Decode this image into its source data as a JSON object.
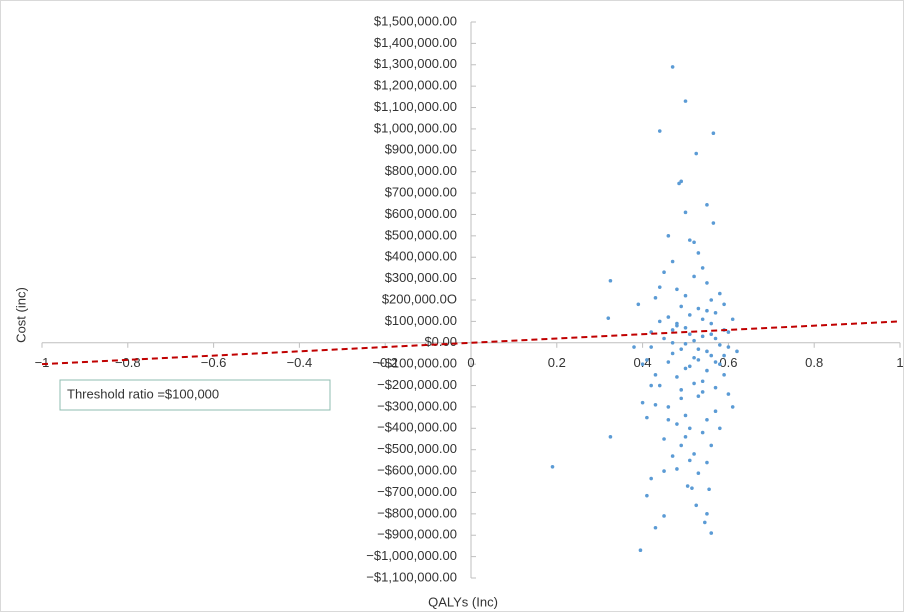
{
  "chart_data": {
    "type": "scatter",
    "x_label": "QALYs (Inc)",
    "y_label": "Cost (inc)",
    "annotation": "Threshold ratio =$100,000",
    "color": "#5b9bd5",
    "xlim": [
      -1,
      1
    ],
    "ylim": [
      -1100000,
      1500000
    ],
    "xticks": [
      {
        "value": -1,
        "label": "−1"
      },
      {
        "value": -0.8,
        "label": "−0.8"
      },
      {
        "value": -0.6,
        "label": "−0.6"
      },
      {
        "value": -0.4,
        "label": "−0.4"
      },
      {
        "value": -0.2,
        "label": "−0.2"
      },
      0,
      0.2,
      0.4,
      0.6,
      0.8,
      1
    ],
    "yticks": [
      {
        "value": 1500000,
        "label": "$1,500,000.00"
      },
      {
        "value": 1400000,
        "label": "$1,400,000.00"
      },
      {
        "value": 1300000,
        "label": "$1,300,000.00"
      },
      {
        "value": 1200000,
        "label": "$1,200,000.00"
      },
      {
        "value": 1100000,
        "label": "$1,100,000.00"
      },
      {
        "value": 1000000,
        "label": "$1,000,000.00"
      },
      {
        "value": 900000,
        "label": "$900,000.00"
      },
      {
        "value": 800000,
        "label": "$800,000.00"
      },
      {
        "value": 700000,
        "label": "$700,000.00"
      },
      {
        "value": 600000,
        "label": "$600,000.00"
      },
      {
        "value": 500000,
        "label": "$500,000.00"
      },
      {
        "value": 400000,
        "label": "$400,000.00"
      },
      {
        "value": 300000,
        "label": "$300,000.00"
      },
      {
        "value": 200000,
        "label": "$200,000.0O"
      },
      {
        "value": 100000,
        "label": "$100,000.00"
      },
      {
        "value": 0,
        "label": "$0.00"
      },
      {
        "value": -100000,
        "label": "−$100,000.00"
      },
      {
        "value": -200000,
        "label": "−$200,000.00"
      },
      {
        "value": -300000,
        "label": "−$300,000.00"
      },
      {
        "value": -400000,
        "label": "−$400,000.00"
      },
      {
        "value": -500000,
        "label": "−$500,000.00"
      },
      {
        "value": -600000,
        "label": "−$600,000.00"
      },
      {
        "value": -700000,
        "label": "−$700,000.00"
      },
      {
        "value": -800000,
        "label": "−$800,000.00"
      },
      {
        "value": -900000,
        "label": "−$900,000.00"
      },
      {
        "value": -1000000,
        "label": "−$1,000,000.00"
      },
      {
        "value": -1100000,
        "label": "−$1,100,000.00"
      }
    ],
    "threshold_line": {
      "color": "#c00000",
      "x": [
        -1,
        1
      ],
      "y": [
        -100000,
        100000
      ]
    },
    "x": [
      0.45,
      0.47,
      0.48,
      0.5,
      0.52,
      0.53,
      0.55,
      0.57,
      0.59,
      0.6,
      0.44,
      0.46,
      0.49,
      0.51,
      0.54,
      0.56,
      0.58,
      0.43,
      0.42,
      0.41,
      0.48,
      0.5,
      0.52,
      0.54,
      0.56,
      0.46,
      0.47,
      0.53,
      0.55,
      0.51,
      0.49,
      0.51,
      0.53,
      0.57,
      0.45,
      0.58,
      0.4,
      0.39,
      0.61,
      0.6,
      0.47,
      0.52,
      0.54,
      0.5,
      0.48,
      0.55,
      0.56,
      0.44,
      0.57,
      0.53,
      0.46,
      0.49,
      0.51,
      0.43,
      0.58,
      0.59,
      0.42,
      0.45,
      0.52,
      0.55,
      0.5,
      0.48,
      0.53,
      0.56,
      0.47,
      0.57,
      0.44,
      0.54,
      0.49,
      0.51,
      0.38,
      0.4,
      0.41,
      0.62,
      0.61,
      0.59,
      0.6,
      0.46,
      0.52,
      0.5,
      0.45,
      0.54,
      0.55,
      0.56,
      0.48,
      0.49,
      0.53,
      0.51,
      0.58,
      0.57,
      0.43,
      0.47,
      0.52,
      0.5,
      0.46,
      0.55,
      0.54,
      0.42,
      0.59,
      0.48,
      0.47,
      0.5,
      0.44,
      0.565,
      0.525,
      0.49,
      0.485,
      0.55,
      0.5,
      0.565,
      0.325,
      0.32,
      0.19,
      0.325,
      0.395,
      0.41,
      0.45,
      0.43,
      0.56,
      0.545,
      0.55,
      0.525,
      0.505,
      0.515,
      0.555,
      0.42
    ],
    "y": [
      20000,
      -50000,
      80000,
      -120000,
      10000,
      -30000,
      150000,
      -90000,
      60000,
      -20000,
      -200000,
      120000,
      -260000,
      40000,
      -180000,
      90000,
      -10000,
      -150000,
      50000,
      -80000,
      250000,
      -340000,
      310000,
      -420000,
      200000,
      -300000,
      380000,
      -250000,
      -360000,
      480000,
      -480000,
      -550000,
      420000,
      -320000,
      330000,
      -400000,
      -100000,
      180000,
      110000,
      -240000,
      0,
      -70000,
      30000,
      70000,
      -160000,
      -130000,
      -60000,
      100000,
      140000,
      160000,
      -360000,
      -220000,
      -400000,
      -290000,
      230000,
      -150000,
      -20000,
      -450000,
      -520000,
      280000,
      220000,
      -590000,
      -610000,
      -480000,
      -530000,
      -210000,
      260000,
      350000,
      170000,
      -110000,
      -20000,
      -280000,
      -350000,
      -40000,
      -300000,
      180000,
      50000,
      500000,
      470000,
      -440000,
      -600000,
      -230000,
      -560000,
      40000,
      90000,
      -30000,
      -80000,
      130000,
      -100000,
      20000,
      210000,
      60000,
      -190000,
      -5000,
      -90000,
      -40000,
      110000,
      -200000,
      -60000,
      -380000,
      1290000,
      1130000,
      990000,
      980000,
      885000,
      755000,
      745000,
      645000,
      610000,
      560000,
      290000,
      115000,
      -580000,
      -440000,
      -970000,
      -715000,
      -810000,
      -865000,
      -890000,
      -840000,
      -800000,
      -760000,
      -670000,
      -680000,
      -685000,
      -635000
    ]
  }
}
